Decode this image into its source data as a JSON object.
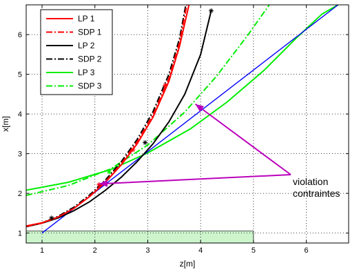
{
  "chart_data": {
    "type": "line",
    "title": "",
    "xlabel": "z[m]",
    "ylabel": "x[m]",
    "xlim": [
      0.7,
      6.8
    ],
    "ylim": [
      0.75,
      6.75
    ],
    "xticks": [
      1,
      2,
      3,
      4,
      5,
      6
    ],
    "yticks": [
      1,
      2,
      3,
      4,
      5,
      6
    ],
    "grid": true,
    "legend_position": "top-left",
    "series": [
      {
        "name": "LP 1",
        "color": "#ff0000",
        "dash": "solid",
        "x": [
          0.7,
          1.0,
          1.3,
          1.6,
          1.9,
          2.2,
          2.5,
          2.8,
          3.1,
          3.4,
          3.6,
          3.78
        ],
        "y": [
          1.18,
          1.26,
          1.4,
          1.62,
          1.92,
          2.28,
          2.72,
          3.25,
          3.92,
          4.82,
          5.7,
          6.75
        ],
        "markers": [
          {
            "x": 2.08,
            "y": 2.22
          },
          {
            "x": 2.72,
            "y": 3.1
          },
          {
            "x": 3.33,
            "y": 4.72
          }
        ]
      },
      {
        "name": "SDP 1",
        "color": "#ff0000",
        "dash": "dashdot",
        "x": [
          0.7,
          1.0,
          1.3,
          1.6,
          1.9,
          2.2,
          2.5,
          2.8,
          3.1,
          3.4,
          3.6,
          3.74
        ],
        "y": [
          1.17,
          1.25,
          1.4,
          1.62,
          1.93,
          2.3,
          2.75,
          3.3,
          3.98,
          4.9,
          5.8,
          6.75
        ],
        "markers": []
      },
      {
        "name": "LP 2",
        "color": "#000000",
        "dash": "solid",
        "x": [
          0.7,
          1.0,
          1.3,
          1.6,
          1.9,
          2.2,
          2.5,
          2.8,
          3.1,
          3.4,
          3.7,
          4.0,
          4.2
        ],
        "y": [
          1.16,
          1.25,
          1.38,
          1.56,
          1.79,
          2.08,
          2.41,
          2.8,
          3.25,
          3.8,
          4.5,
          5.5,
          6.6
        ],
        "markers": [
          {
            "x": 1.18,
            "y": 1.38
          },
          {
            "x": 2.95,
            "y": 3.28
          },
          {
            "x": 4.2,
            "y": 6.6
          }
        ]
      },
      {
        "name": "SDP 2",
        "color": "#000000",
        "dash": "dashdot",
        "x": [
          0.7,
          1.0,
          1.3,
          1.6,
          1.9,
          2.2,
          2.5,
          2.8,
          3.1,
          3.4,
          3.6,
          3.72
        ],
        "y": [
          1.16,
          1.26,
          1.42,
          1.65,
          1.96,
          2.34,
          2.8,
          3.36,
          4.06,
          5.0,
          5.9,
          6.75
        ],
        "markers": []
      },
      {
        "name": "LP 3",
        "color": "#00ee00",
        "dash": "solid",
        "x": [
          0.7,
          1.5,
          2.3,
          3.0,
          3.8,
          4.5,
          5.2,
          5.8,
          6.3,
          6.6
        ],
        "y": [
          2.08,
          2.28,
          2.6,
          3.02,
          3.62,
          4.3,
          5.1,
          5.9,
          6.52,
          6.75
        ],
        "markers": []
      },
      {
        "name": "SDP 3",
        "color": "#00ee00",
        "dash": "dashdot",
        "x": [
          0.7,
          1.5,
          2.3,
          3.0,
          3.7,
          4.3,
          4.9,
          5.3
        ],
        "y": [
          1.95,
          2.2,
          2.62,
          3.22,
          4.05,
          4.95,
          6.0,
          6.75
        ],
        "markers": [
          {
            "x": 2.27,
            "y": 2.54
          }
        ]
      },
      {
        "name": "",
        "color": "#0000ff",
        "dash": "solid",
        "x": [
          1.0,
          6.6
        ],
        "y": [
          1.0,
          6.75
        ],
        "markers": []
      }
    ],
    "shaded_region": {
      "x": [
        0.7,
        5.0
      ],
      "y": [
        0.75,
        1.05
      ],
      "color": "#ccf5cc"
    },
    "annotation": {
      "lines": [
        "violation",
        "contraintes"
      ],
      "arrow_color": "#bb00bb",
      "arrow_targets": [
        {
          "x": 2.08,
          "y": 2.24
        },
        {
          "x": 3.9,
          "y": 4.25
        }
      ]
    }
  }
}
